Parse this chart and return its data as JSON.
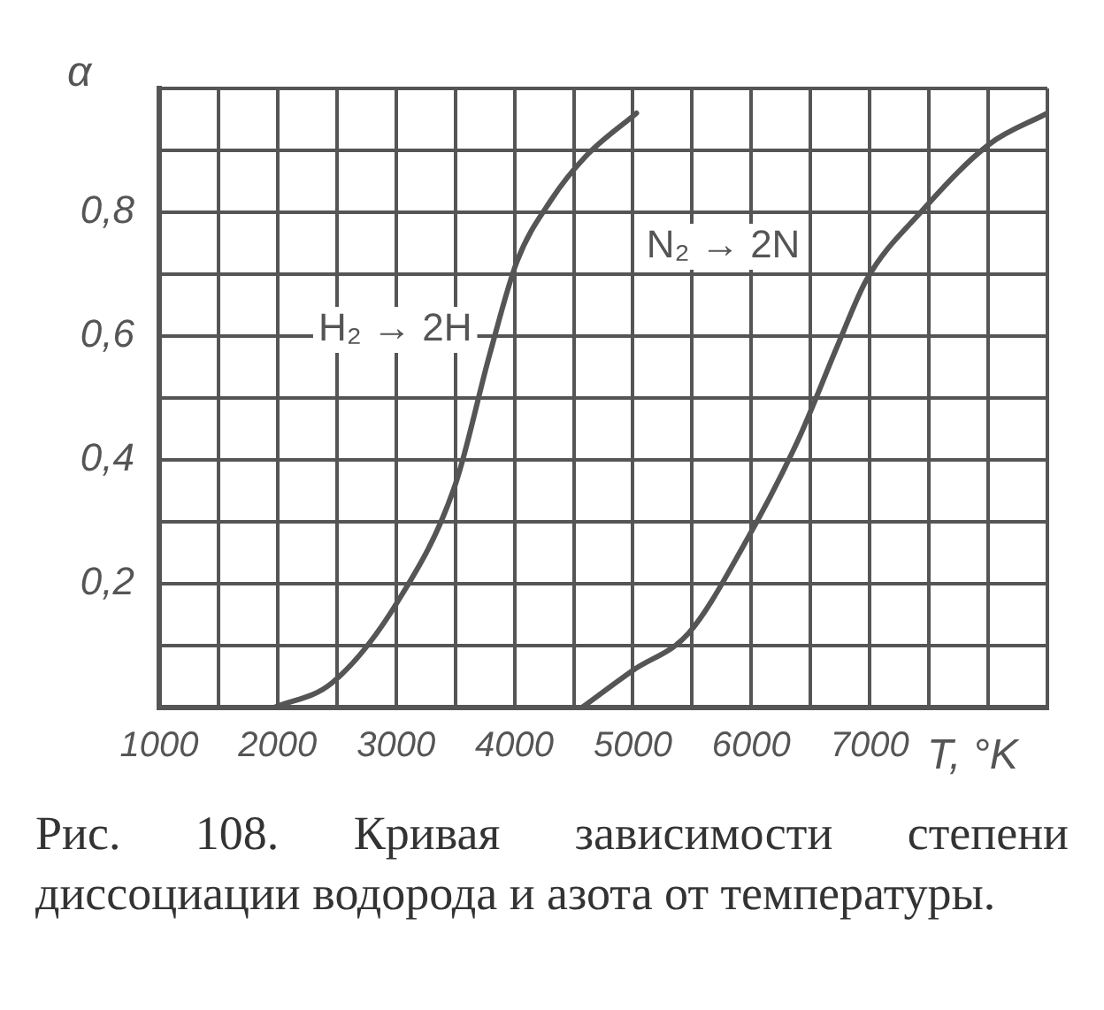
{
  "chart_data": {
    "type": "line",
    "xlabel": "T, °K",
    "ylabel": "α",
    "xlim": [
      1000,
      8500
    ],
    "xticks": [
      1000,
      {
        "value": 1500,
        "label": null
      },
      2000,
      {
        "value": 2500,
        "label": null
      },
      3000,
      {
        "value": 3500,
        "label": null
      },
      4000,
      {
        "value": 4500,
        "label": null
      },
      5000,
      {
        "value": 5500,
        "label": null
      },
      6000,
      {
        "value": 6500,
        "label": null
      },
      7000,
      {
        "value": 7500,
        "label": null
      },
      {
        "value": 8000,
        "label": null
      },
      {
        "value": 8500,
        "label": null
      }
    ],
    "ylim": [
      0,
      1
    ],
    "yticks": [
      {
        "value": 0,
        "label": null
      },
      {
        "value": 0.1,
        "label": null
      },
      {
        "value": 0.2,
        "label": "0,2"
      },
      {
        "value": 0.3,
        "label": null
      },
      {
        "value": 0.4,
        "label": "0,4"
      },
      {
        "value": 0.5,
        "label": null
      },
      {
        "value": 0.6,
        "label": "0,6"
      },
      {
        "value": 0.7,
        "label": null
      },
      {
        "value": 0.8,
        "label": "0,8"
      },
      {
        "value": 0.9,
        "label": null
      },
      {
        "value": 1,
        "label": null
      }
    ],
    "grid": true,
    "legend": false,
    "marker": "none",
    "line_style": "solid",
    "series": [
      {
        "name": "H₂ → 2H",
        "color": "#555555",
        "x": [
          1970,
          2460,
          3010,
          3500,
          3790,
          4020,
          4310,
          4600,
          5030
        ],
        "values": [
          0,
          0.04,
          0.17,
          0.36,
          0.57,
          0.72,
          0.82,
          0.89,
          0.96
        ]
      },
      {
        "name": "N₂ → 2N",
        "color": "#555555",
        "x": [
          4570,
          5000,
          5470,
          5930,
          6390,
          6740,
          6970,
          7430,
          8010,
          8500
        ],
        "values": [
          0,
          0.06,
          0.12,
          0.26,
          0.43,
          0.59,
          0.69,
          0.8,
          0.91,
          0.96
        ]
      }
    ],
    "annotations": [
      "Рис. 108. Кривая зависимости степени диссоциации водорода и азота от температуры."
    ]
  }
}
